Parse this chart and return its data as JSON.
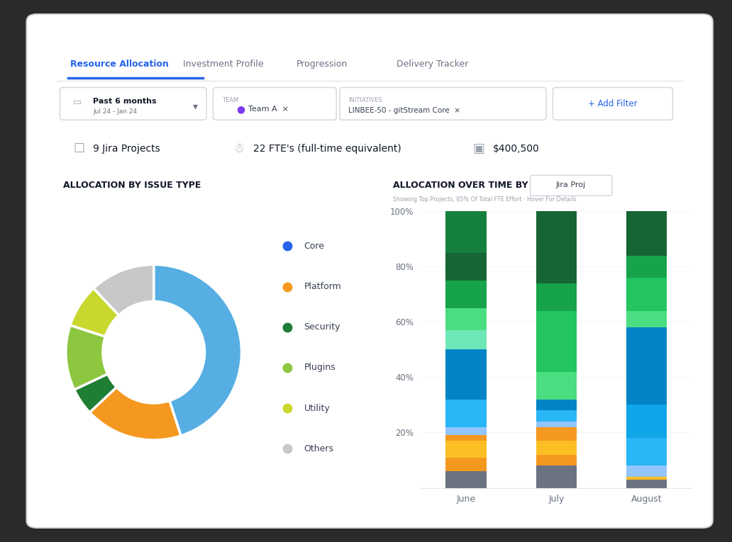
{
  "bg_color": "#2a2a2a",
  "card_color": "#ffffff",
  "tab_active": "Resource Allocation",
  "tabs": [
    "Resource Allocation",
    "Investment Profile",
    "Progression",
    "Delivery Tracker"
  ],
  "tab_active_color": "#2563eb",
  "tab_inactive_color": "#6b7280",
  "filter_date": "Past 6 months",
  "filter_date_sub": "Jul 24 - Jan 24",
  "filter_team": "Team A",
  "filter_initiative": "LINBEE-50 - gitStream Core",
  "stat1_label": "9 Jira Projects",
  "stat2_label": "22 FTE's (full-time equivalent)",
  "stat3_label": "$400,500",
  "donut_title": "ALLOCATION BY ISSUE TYPE",
  "donut_values": [
    45,
    18,
    5,
    12,
    8,
    12
  ],
  "donut_colors": [
    "#56aee2",
    "#f59820",
    "#1e7e34",
    "#8dc63f",
    "#c8d82e",
    "#c8c8c8"
  ],
  "legend_labels": [
    "Core",
    "Platform",
    "Security",
    "Plugins",
    "Utility",
    "Others"
  ],
  "legend_colors": [
    "#2563eb",
    "#f59820",
    "#1e7e34",
    "#8dc63f",
    "#c8d82e",
    "#c8c8c8"
  ],
  "bar_title": "ALLOCATION OVER TIME BY",
  "bar_title_button": "Jira Proj",
  "bar_subtitle": "Showing Top Projects, 85% Of Total FTE Effort · Hover For Details",
  "bar_months": [
    "June",
    "July",
    "August"
  ],
  "june_layers": [
    {
      "color": "#6b7280",
      "value": 0.06
    },
    {
      "color": "#f59820",
      "value": 0.05
    },
    {
      "color": "#fbbf24",
      "value": 0.06
    },
    {
      "color": "#f59820",
      "value": 0.02
    },
    {
      "color": "#93c5fd",
      "value": 0.03
    },
    {
      "color": "#29b6f6",
      "value": 0.1
    },
    {
      "color": "#0284c7",
      "value": 0.18
    },
    {
      "color": "#6ee7b7",
      "value": 0.07
    },
    {
      "color": "#4ade80",
      "value": 0.08
    },
    {
      "color": "#16a34a",
      "value": 0.1
    },
    {
      "color": "#166534",
      "value": 0.1
    },
    {
      "color": "#15803d",
      "value": 0.15
    }
  ],
  "july_layers": [
    {
      "color": "#6b7280",
      "value": 0.08
    },
    {
      "color": "#f59820",
      "value": 0.04
    },
    {
      "color": "#fbbf24",
      "value": 0.05
    },
    {
      "color": "#f59820",
      "value": 0.05
    },
    {
      "color": "#93c5fd",
      "value": 0.02
    },
    {
      "color": "#29b6f6",
      "value": 0.04
    },
    {
      "color": "#0284c7",
      "value": 0.04
    },
    {
      "color": "#4ade80",
      "value": 0.03
    },
    {
      "color": "#4ade80",
      "value": 0.07
    },
    {
      "color": "#22c55e",
      "value": 0.22
    },
    {
      "color": "#16a34a",
      "value": 0.1
    },
    {
      "color": "#166534",
      "value": 0.26
    }
  ],
  "august_layers": [
    {
      "color": "#6b7280",
      "value": 0.03
    },
    {
      "color": "#fbbf24",
      "value": 0.01
    },
    {
      "color": "#93c5fd",
      "value": 0.04
    },
    {
      "color": "#29b6f6",
      "value": 0.1
    },
    {
      "color": "#0ea5e9",
      "value": 0.12
    },
    {
      "color": "#0284c7",
      "value": 0.28
    },
    {
      "color": "#4ade80",
      "value": 0.06
    },
    {
      "color": "#22c55e",
      "value": 0.12
    },
    {
      "color": "#16a34a",
      "value": 0.08
    },
    {
      "color": "#166534",
      "value": 0.16
    }
  ]
}
